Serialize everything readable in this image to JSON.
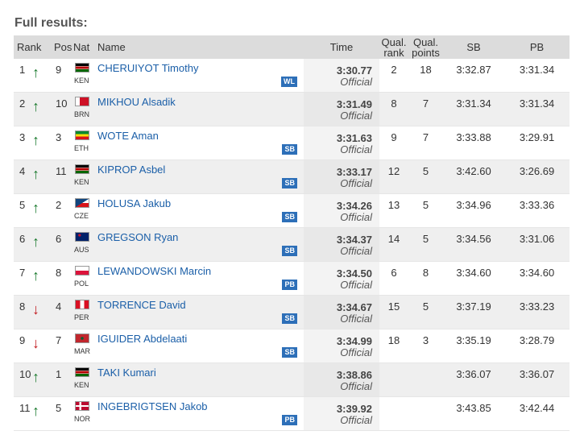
{
  "heading": "Full results:",
  "headers": {
    "rank": "Rank",
    "pos": "Pos",
    "nat": "Nat",
    "name": "Name",
    "time": "Time",
    "qual_rank_1": "Qual.",
    "qual_rank_2": "rank",
    "qual_points_1": "Qual.",
    "qual_points_2": "points",
    "sb": "SB",
    "pb": "PB"
  },
  "rows": [
    {
      "rank": "1",
      "dir": "up",
      "pos": "9",
      "nat": "KEN",
      "name": "CHERUIYOT Timothy",
      "badge": "WL",
      "time": "3:30.77",
      "status": "Official",
      "qrank": "2",
      "qpoints": "18",
      "sb": "3:32.87",
      "pb": "3:31.34"
    },
    {
      "rank": "2",
      "dir": "up",
      "pos": "10",
      "nat": "BRN",
      "name": "MIKHOU Alsadik",
      "badge": "",
      "time": "3:31.49",
      "status": "Official",
      "qrank": "8",
      "qpoints": "7",
      "sb": "3:31.34",
      "pb": "3:31.34"
    },
    {
      "rank": "3",
      "dir": "up",
      "pos": "3",
      "nat": "ETH",
      "name": "WOTE Aman",
      "badge": "SB",
      "time": "3:31.63",
      "status": "Official",
      "qrank": "9",
      "qpoints": "7",
      "sb": "3:33.88",
      "pb": "3:29.91"
    },
    {
      "rank": "4",
      "dir": "up",
      "pos": "11",
      "nat": "KEN",
      "name": "KIPROP Asbel",
      "badge": "SB",
      "time": "3:33.17",
      "status": "Official",
      "qrank": "12",
      "qpoints": "5",
      "sb": "3:42.60",
      "pb": "3:26.69"
    },
    {
      "rank": "5",
      "dir": "up",
      "pos": "2",
      "nat": "CZE",
      "name": "HOLUSA Jakub",
      "badge": "SB",
      "time": "3:34.26",
      "status": "Official",
      "qrank": "13",
      "qpoints": "5",
      "sb": "3:34.96",
      "pb": "3:33.36"
    },
    {
      "rank": "6",
      "dir": "up",
      "pos": "6",
      "nat": "AUS",
      "name": "GREGSON Ryan",
      "badge": "SB",
      "time": "3:34.37",
      "status": "Official",
      "qrank": "14",
      "qpoints": "5",
      "sb": "3:34.56",
      "pb": "3:31.06"
    },
    {
      "rank": "7",
      "dir": "up",
      "pos": "8",
      "nat": "POL",
      "name": "LEWANDOWSKI Marcin",
      "badge": "PB",
      "time": "3:34.50",
      "status": "Official",
      "qrank": "6",
      "qpoints": "8",
      "sb": "3:34.60",
      "pb": "3:34.60"
    },
    {
      "rank": "8",
      "dir": "down",
      "pos": "4",
      "nat": "PER",
      "name": "TORRENCE David",
      "badge": "SB",
      "time": "3:34.67",
      "status": "Official",
      "qrank": "15",
      "qpoints": "5",
      "sb": "3:37.19",
      "pb": "3:33.23"
    },
    {
      "rank": "9",
      "dir": "down",
      "pos": "7",
      "nat": "MAR",
      "name": "IGUIDER Abdelaati",
      "badge": "SB",
      "time": "3:34.99",
      "status": "Official",
      "qrank": "18",
      "qpoints": "3",
      "sb": "3:35.19",
      "pb": "3:28.79"
    },
    {
      "rank": "10",
      "dir": "up",
      "pos": "1",
      "nat": "KEN",
      "name": "TAKI Kumari",
      "badge": "",
      "time": "3:38.86",
      "status": "Official",
      "qrank": "",
      "qpoints": "",
      "sb": "3:36.07",
      "pb": "3:36.07"
    },
    {
      "rank": "11",
      "dir": "up",
      "pos": "5",
      "nat": "NOR",
      "name": "INGEBRIGTSEN Jakob",
      "badge": "PB",
      "time": "3:39.92",
      "status": "Official",
      "qrank": "",
      "qpoints": "",
      "sb": "3:43.85",
      "pb": "3:42.44"
    }
  ],
  "colors": {
    "link": "#1b5fa8",
    "badge": "#2d6fb8",
    "arrow_up": "#1a7a2e",
    "arrow_down": "#c0161b",
    "header_bg": "#dcdcdc"
  }
}
